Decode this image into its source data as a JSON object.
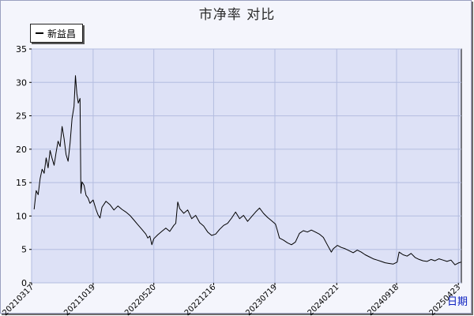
{
  "chart_data": {
    "type": "line",
    "title": "市净率  对比",
    "xlabel": "日期",
    "ylabel": "",
    "ylim": [
      0,
      35
    ],
    "y_ticks": [
      0,
      5,
      10,
      15,
      20,
      25,
      30,
      35
    ],
    "x_ticks": [
      "20210317",
      "20211019",
      "20220520",
      "20221216",
      "20230719",
      "20240221",
      "20240918",
      "20250423"
    ],
    "grid": true,
    "legend": "top-left",
    "series": [
      {
        "name": "新益昌",
        "color": "#000000",
        "points": [
          [
            "20210326",
            11.0
          ],
          [
            "20210402",
            13.8
          ],
          [
            "20210409",
            13.2
          ],
          [
            "20210416",
            15.6
          ],
          [
            "20210423",
            17.0
          ],
          [
            "20210430",
            16.4
          ],
          [
            "20210507",
            18.7
          ],
          [
            "20210514",
            17.2
          ],
          [
            "20210521",
            19.8
          ],
          [
            "20210528",
            18.6
          ],
          [
            "20210604",
            17.6
          ],
          [
            "20210611",
            19.5
          ],
          [
            "20210618",
            21.2
          ],
          [
            "20210625",
            20.4
          ],
          [
            "20210702",
            23.4
          ],
          [
            "20210709",
            21.6
          ],
          [
            "20210716",
            19.2
          ],
          [
            "20210723",
            18.2
          ],
          [
            "20210730",
            20.9
          ],
          [
            "20210806",
            24.6
          ],
          [
            "20210813",
            26.4
          ],
          [
            "20210818",
            31.0
          ],
          [
            "20210823",
            28.3
          ],
          [
            "20210828",
            26.9
          ],
          [
            "20210903",
            27.6
          ],
          [
            "20210906",
            13.4
          ],
          [
            "20210910",
            15.1
          ],
          [
            "20210917",
            14.6
          ],
          [
            "20210924",
            13.1
          ],
          [
            "20211001",
            12.7
          ],
          [
            "20211008",
            11.9
          ],
          [
            "20211019",
            12.4
          ],
          [
            "20211029",
            11.0
          ],
          [
            "20211105",
            10.2
          ],
          [
            "20211112",
            9.7
          ],
          [
            "20211119",
            11.3
          ],
          [
            "20211203",
            12.2
          ],
          [
            "20211217",
            11.7
          ],
          [
            "20211231",
            10.9
          ],
          [
            "20220114",
            11.5
          ],
          [
            "20220128",
            11.0
          ],
          [
            "20220211",
            10.6
          ],
          [
            "20220225",
            10.1
          ],
          [
            "20220311",
            9.4
          ],
          [
            "20220325",
            8.7
          ],
          [
            "20220408",
            8.0
          ],
          [
            "20220422",
            7.3
          ],
          [
            "20220429",
            6.7
          ],
          [
            "20220506",
            7.0
          ],
          [
            "20220513",
            5.7
          ],
          [
            "20220520",
            6.6
          ],
          [
            "20220603",
            7.2
          ],
          [
            "20220617",
            7.7
          ],
          [
            "20220701",
            8.2
          ],
          [
            "20220715",
            7.7
          ],
          [
            "20220729",
            8.6
          ],
          [
            "20220805",
            8.9
          ],
          [
            "20220812",
            12.1
          ],
          [
            "20220819",
            11.1
          ],
          [
            "20220902",
            10.4
          ],
          [
            "20220916",
            10.9
          ],
          [
            "20220930",
            9.6
          ],
          [
            "20221014",
            10.1
          ],
          [
            "20221028",
            9.0
          ],
          [
            "20221111",
            8.5
          ],
          [
            "20221125",
            7.6
          ],
          [
            "20221209",
            7.1
          ],
          [
            "20221223",
            7.3
          ],
          [
            "20230106",
            8.0
          ],
          [
            "20230120",
            8.6
          ],
          [
            "20230203",
            8.9
          ],
          [
            "20230217",
            9.7
          ],
          [
            "20230303",
            10.6
          ],
          [
            "20230317",
            9.6
          ],
          [
            "20230331",
            10.1
          ],
          [
            "20230414",
            9.2
          ],
          [
            "20230428",
            9.9
          ],
          [
            "20230512",
            10.6
          ],
          [
            "20230526",
            11.2
          ],
          [
            "20230609",
            10.4
          ],
          [
            "20230623",
            9.8
          ],
          [
            "20230707",
            9.3
          ],
          [
            "20230721",
            8.8
          ],
          [
            "20230728",
            7.8
          ],
          [
            "20230804",
            6.7
          ],
          [
            "20230818",
            6.4
          ],
          [
            "20230901",
            6.0
          ],
          [
            "20230915",
            5.7
          ],
          [
            "20230929",
            6.1
          ],
          [
            "20231013",
            7.4
          ],
          [
            "20231027",
            7.8
          ],
          [
            "20231110",
            7.6
          ],
          [
            "20231124",
            7.9
          ],
          [
            "20231208",
            7.6
          ],
          [
            "20231222",
            7.3
          ],
          [
            "20240105",
            6.8
          ],
          [
            "20240119",
            5.7
          ],
          [
            "20240202",
            4.6
          ],
          [
            "20240209",
            5.1
          ],
          [
            "20240223",
            5.6
          ],
          [
            "20240308",
            5.3
          ],
          [
            "20240322",
            5.1
          ],
          [
            "20240405",
            4.8
          ],
          [
            "20240419",
            4.5
          ],
          [
            "20240503",
            4.9
          ],
          [
            "20240517",
            4.6
          ],
          [
            "20240531",
            4.2
          ],
          [
            "20240614",
            3.9
          ],
          [
            "20240628",
            3.6
          ],
          [
            "20240712",
            3.4
          ],
          [
            "20240726",
            3.2
          ],
          [
            "20240809",
            3.0
          ],
          [
            "20240823",
            2.9
          ],
          [
            "20240906",
            2.8
          ],
          [
            "20240920",
            3.1
          ],
          [
            "20240927",
            4.6
          ],
          [
            "20241011",
            4.2
          ],
          [
            "20241025",
            4.0
          ],
          [
            "20241108",
            4.4
          ],
          [
            "20241122",
            3.8
          ],
          [
            "20241206",
            3.5
          ],
          [
            "20241220",
            3.3
          ],
          [
            "20250103",
            3.2
          ],
          [
            "20250117",
            3.5
          ],
          [
            "20250131",
            3.3
          ],
          [
            "20250214",
            3.6
          ],
          [
            "20250228",
            3.4
          ],
          [
            "20250314",
            3.2
          ],
          [
            "20250328",
            3.4
          ],
          [
            "20250411",
            2.7
          ],
          [
            "20250425",
            3.0
          ],
          [
            "20250502",
            3.1
          ]
        ]
      }
    ]
  }
}
